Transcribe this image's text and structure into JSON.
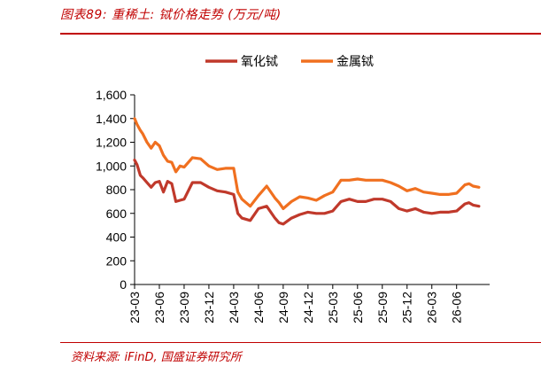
{
  "header": {
    "title": "图表89:  重稀土: 铽价格走势 (万元/吨)"
  },
  "footer": {
    "source": "资料来源: iFinD, 国盛证券研究所"
  },
  "colors": {
    "accent": "#c00000",
    "series_oxide": "#c0392b",
    "series_metal": "#f07020"
  },
  "chart_data": {
    "type": "line",
    "title": "",
    "xlabel": "",
    "ylabel": "",
    "ylim": [
      0,
      1600
    ],
    "yticks": [
      0,
      200,
      400,
      600,
      800,
      1000,
      1200,
      1400,
      1600
    ],
    "ytick_labels": [
      "0",
      "200",
      "400",
      "600",
      "800",
      "1,000",
      "1,200",
      "1,400",
      "1,600"
    ],
    "xlim": [
      0,
      43
    ],
    "xticks": [
      0,
      3,
      6,
      9,
      12,
      15,
      18,
      21,
      24,
      27,
      30,
      33,
      36,
      39
    ],
    "xtick_labels": [
      "23-03",
      "23-06",
      "23-09",
      "23-12",
      "24-03",
      "24-06",
      "24-09",
      "24-12",
      "25-03",
      "25-06",
      "25-09",
      "25-12",
      "26-03",
      "26-06"
    ],
    "legend_position": "top-center",
    "grid": false,
    "x": [
      0,
      0.3,
      0.7,
      1,
      1.5,
      2,
      2.5,
      3,
      3.5,
      4,
      4.5,
      5,
      5.5,
      6,
      7,
      8,
      9,
      10,
      11,
      12,
      12.5,
      13,
      14,
      15,
      16,
      17,
      17.5,
      18,
      19,
      20,
      21,
      22,
      23,
      24,
      25,
      26,
      27,
      28,
      29,
      30,
      31,
      32,
      33,
      34,
      35,
      36,
      37,
      38,
      39,
      40,
      40.5,
      41,
      41.7
    ],
    "series": [
      {
        "name": "氧化铽",
        "values": [
          1050,
          1010,
          920,
          900,
          860,
          820,
          860,
          870,
          780,
          870,
          850,
          700,
          710,
          720,
          860,
          860,
          820,
          790,
          780,
          760,
          600,
          560,
          540,
          640,
          660,
          560,
          520,
          510,
          560,
          590,
          610,
          600,
          600,
          620,
          700,
          720,
          700,
          700,
          720,
          720,
          700,
          640,
          620,
          640,
          610,
          600,
          610,
          610,
          620,
          680,
          690,
          670,
          660
        ]
      },
      {
        "name": "金属铽",
        "values": [
          1400,
          1350,
          1300,
          1270,
          1200,
          1150,
          1200,
          1170,
          1090,
          1040,
          1030,
          950,
          1000,
          990,
          1070,
          1060,
          1000,
          970,
          980,
          980,
          780,
          720,
          660,
          750,
          830,
          730,
          690,
          640,
          700,
          740,
          730,
          710,
          750,
          780,
          880,
          880,
          890,
          880,
          880,
          880,
          860,
          830,
          790,
          810,
          780,
          770,
          760,
          760,
          770,
          840,
          850,
          830,
          820
        ]
      }
    ]
  }
}
